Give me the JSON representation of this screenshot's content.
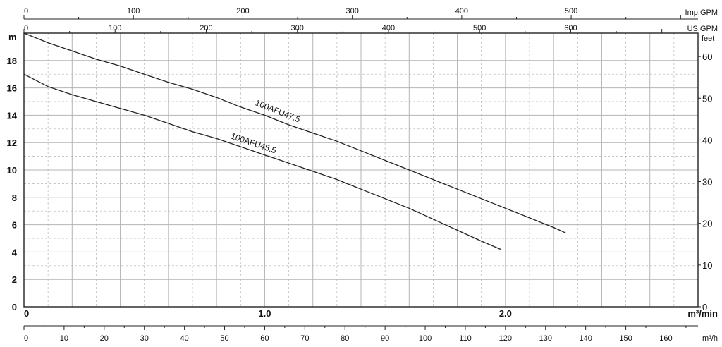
{
  "chart_data": {
    "type": "line",
    "title": "",
    "x_primary": {
      "unit_label": "m³/min",
      "range": [
        0,
        2.8
      ],
      "tick_labels": [
        {
          "value": 0,
          "label": "0"
        },
        {
          "value": 1.0,
          "label": "1.0"
        },
        {
          "value": 2.0,
          "label": "2.0"
        }
      ]
    },
    "x_m3h": {
      "unit_label": "m³/h",
      "range": [
        0,
        168
      ],
      "tick_labels": [
        "0",
        "10",
        "20",
        "30",
        "40",
        "50",
        "60",
        "70",
        "80",
        "90",
        "100",
        "110",
        "120",
        "130",
        "140",
        "150",
        "160"
      ]
    },
    "x_usgpm": {
      "unit_label": "US.GPM",
      "range": [
        0,
        739.7
      ],
      "tick_labels": [
        "0",
        "100",
        "200",
        "300",
        "400",
        "500",
        "600"
      ]
    },
    "x_impgpm": {
      "unit_label": "Imp.GPM",
      "range": [
        0,
        615.9
      ],
      "tick_labels": [
        "0",
        "100",
        "200",
        "300",
        "400",
        "500"
      ]
    },
    "y_primary": {
      "unit_label": "m",
      "range": [
        0,
        20
      ],
      "tick_labels": [
        "0",
        "2",
        "4",
        "6",
        "8",
        "10",
        "12",
        "14",
        "16",
        "18"
      ]
    },
    "y_feet": {
      "unit_label": "feet",
      "range": [
        0,
        65.6
      ],
      "tick_labels": [
        "0",
        "10",
        "20",
        "30",
        "40",
        "50",
        "60"
      ]
    },
    "grid": true,
    "series": [
      {
        "name": "100AFU47.5",
        "x_unit": "m³/min",
        "y_unit": "m",
        "points": [
          [
            0,
            20.0
          ],
          [
            0.1,
            19.3
          ],
          [
            0.2,
            18.7
          ],
          [
            0.3,
            18.1
          ],
          [
            0.4,
            17.6
          ],
          [
            0.5,
            17.0
          ],
          [
            0.6,
            16.4
          ],
          [
            0.7,
            15.9
          ],
          [
            0.8,
            15.3
          ],
          [
            0.9,
            14.6
          ],
          [
            1.0,
            14.0
          ],
          [
            1.1,
            13.3
          ],
          [
            1.2,
            12.7
          ],
          [
            1.3,
            12.1
          ],
          [
            1.4,
            11.4
          ],
          [
            1.5,
            10.7
          ],
          [
            1.6,
            10.0
          ],
          [
            1.7,
            9.3
          ],
          [
            1.8,
            8.6
          ],
          [
            1.9,
            7.9
          ],
          [
            2.0,
            7.2
          ],
          [
            2.1,
            6.5
          ],
          [
            2.2,
            5.8
          ],
          [
            2.25,
            5.4
          ]
        ]
      },
      {
        "name": "100AFU45.5",
        "x_unit": "m³/min",
        "y_unit": "m",
        "points": [
          [
            0,
            17.0
          ],
          [
            0.1,
            16.1
          ],
          [
            0.2,
            15.5
          ],
          [
            0.3,
            15.0
          ],
          [
            0.4,
            14.5
          ],
          [
            0.5,
            14.0
          ],
          [
            0.6,
            13.4
          ],
          [
            0.7,
            12.8
          ],
          [
            0.8,
            12.3
          ],
          [
            0.9,
            11.7
          ],
          [
            1.0,
            11.1
          ],
          [
            1.1,
            10.5
          ],
          [
            1.2,
            9.9
          ],
          [
            1.3,
            9.3
          ],
          [
            1.4,
            8.6
          ],
          [
            1.5,
            7.9
          ],
          [
            1.6,
            7.2
          ],
          [
            1.7,
            6.4
          ],
          [
            1.8,
            5.6
          ],
          [
            1.9,
            4.8
          ],
          [
            1.98,
            4.2
          ]
        ]
      }
    ]
  }
}
